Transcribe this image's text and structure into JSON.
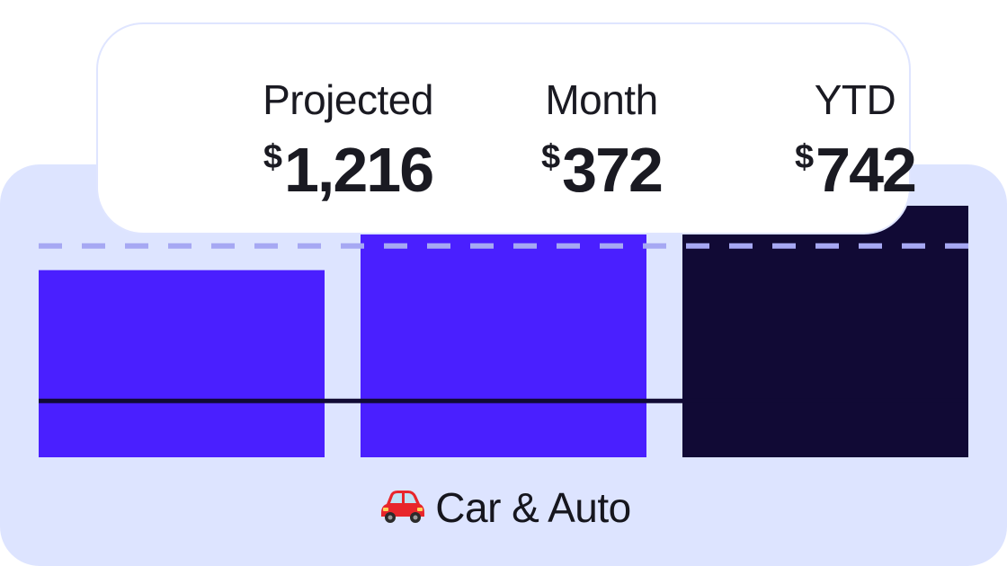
{
  "summary": {
    "projected": {
      "label": "Projected",
      "currency": "$",
      "amount": "1,216"
    },
    "month": {
      "label": "Month",
      "currency": "$",
      "amount": "372"
    },
    "ytd": {
      "label": "YTD",
      "currency": "$",
      "amount": "742"
    }
  },
  "category": {
    "icon": "car-icon",
    "label": "Car & Auto"
  },
  "colors": {
    "panel_bg": "#dde4ff",
    "bar_current": "#4a1fff",
    "bar_ytd": "#110a35",
    "budget_line": "#a6a8f3",
    "baseline": "#110a35"
  },
  "chart_data": {
    "type": "bar",
    "categories": [
      "",
      "",
      ""
    ],
    "values": [
      372,
      560,
      500
    ],
    "bar_colors": [
      "#4a1fff",
      "#4a1fff",
      "#110a35"
    ],
    "reference_lines": [
      {
        "style": "dashed",
        "value": 420,
        "color": "#a6a8f3"
      },
      {
        "style": "solid",
        "value": 112,
        "color": "#110a35"
      }
    ],
    "ylim": [
      0,
      600
    ],
    "grid": false,
    "legend": "none"
  }
}
